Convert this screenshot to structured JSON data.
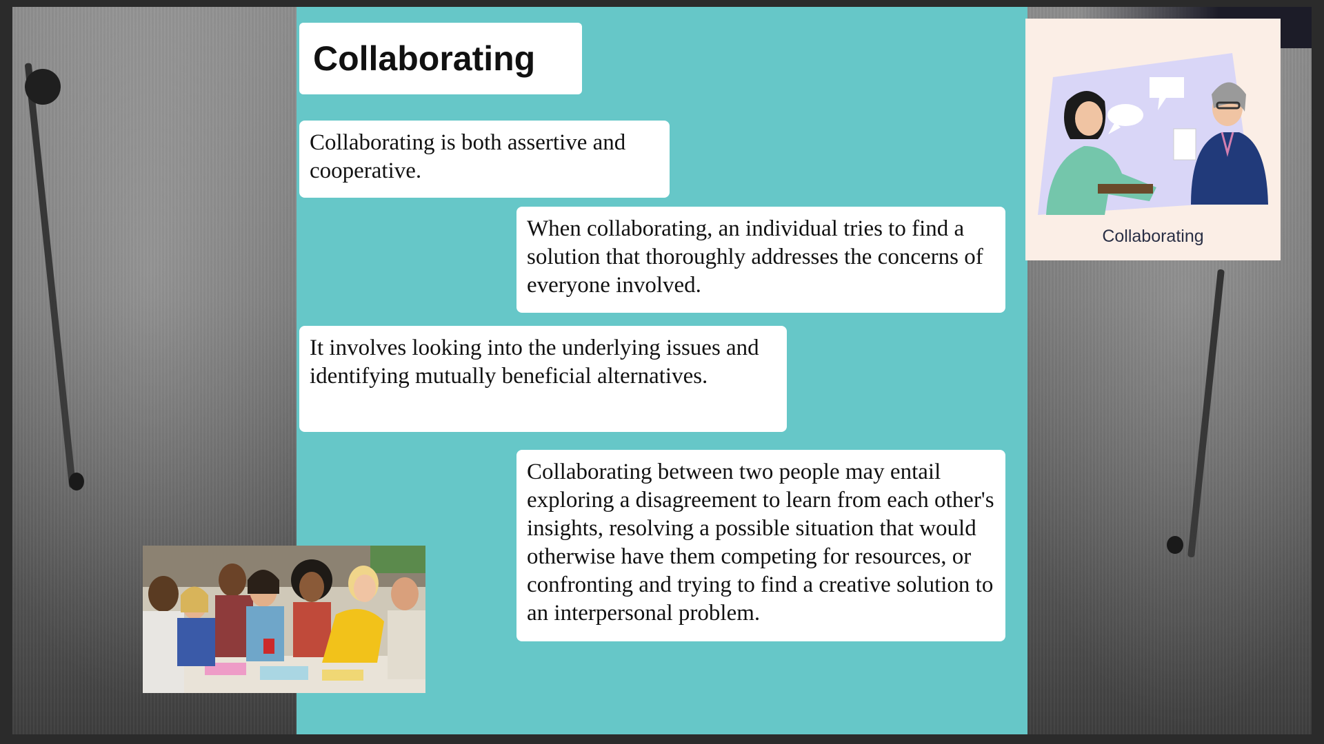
{
  "slide": {
    "title": "Collaborating",
    "bubbles": [
      "Collaborating is both assertive and cooperative.",
      "When collaborating, an individual tries to find a solution that thoroughly addresses the concerns of everyone involved.",
      "It involves looking into the underlying issues and identifying mutually beneficial alternatives.",
      "Collaborating between two people may entail exploring a disagreement to learn from each other's insights, resolving a possible situation that would otherwise have them competing for resources, or confronting and trying to find a creative solution to an interpersonal problem."
    ],
    "illustration_label": "Collaborating"
  },
  "colors": {
    "panel": "#66c7c8",
    "card": "#fbeee6",
    "text": "#111111"
  },
  "icons": {
    "illustration": "two-women-talking-illustration",
    "photo": "group-collaboration-photo"
  }
}
